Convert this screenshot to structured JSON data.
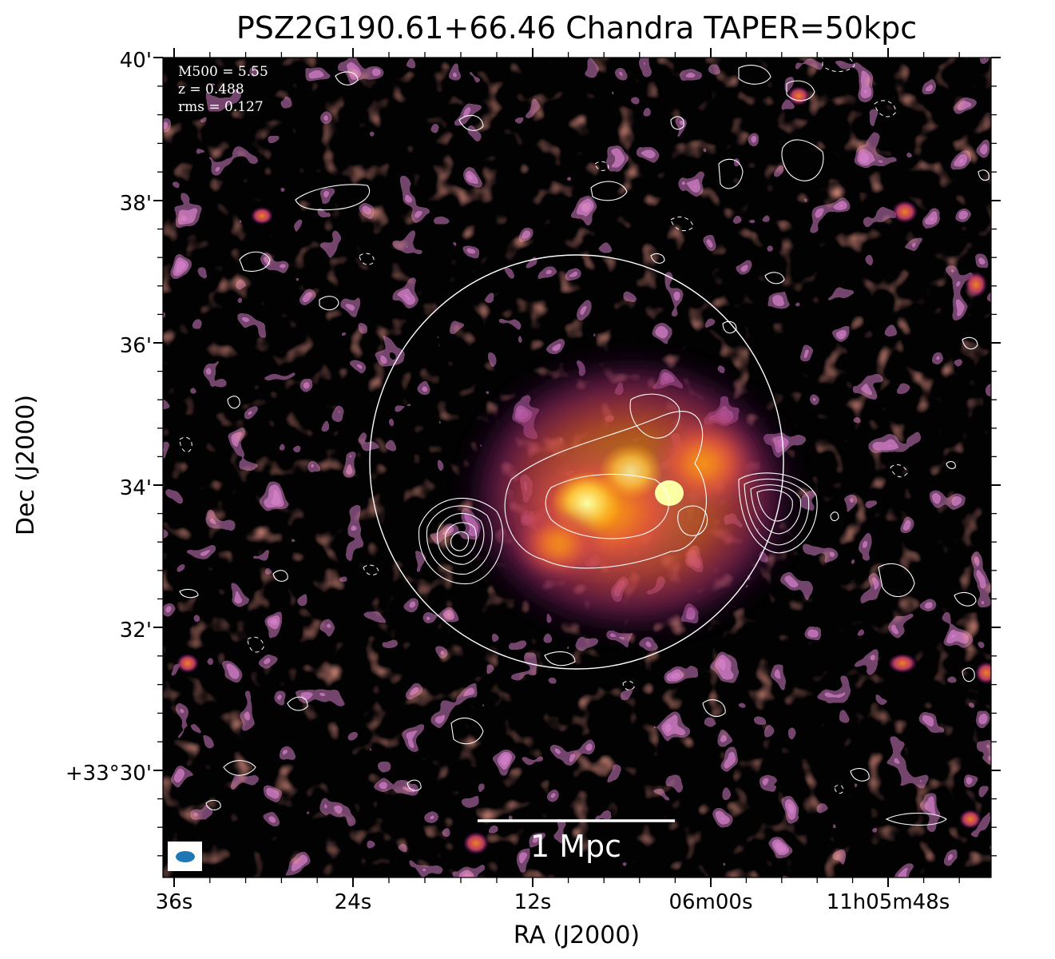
{
  "title": "PSZ2G190.61+66.46 Chandra TAPER=50kpc",
  "info_box": {
    "lines": [
      "M500 = 5.55",
      "z = 0.488",
      "rms = 0.127"
    ]
  },
  "scale_bar": {
    "label": "1 Mpc"
  },
  "axes": {
    "xlabel": "RA (J2000)",
    "ylabel": "Dec (J2000)",
    "x_ticks": [
      "36s",
      "24s",
      "12s",
      "06m00s",
      "11h05m48s"
    ],
    "y_ticks": [
      "40'",
      "38'",
      "36'",
      "34'",
      "32'",
      "+33°30'"
    ]
  },
  "colors": {
    "background": "#030203",
    "colormap": [
      "#000004",
      "#420a68",
      "#932667",
      "#dd513a",
      "#fca50a",
      "#fcffa4"
    ],
    "contours": "#ffffff",
    "beam": "#1f77b4"
  },
  "icons": {
    "beam": "beam-ellipse-icon"
  }
}
